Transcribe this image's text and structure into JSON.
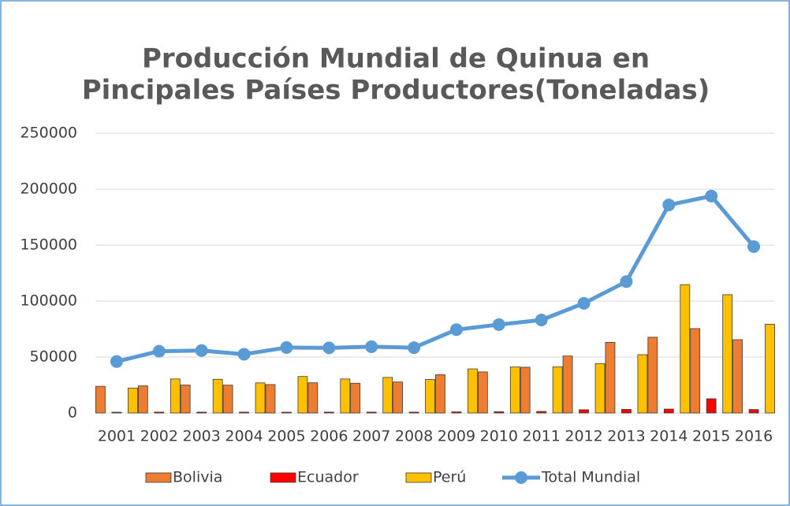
{
  "chart_data": {
    "type": "bar-line",
    "title": "Producción Mundial de Quinua en",
    "title_line2": "Pincipales Países Productores(Toneladas)",
    "categories": [
      "2001",
      "2002",
      "2003",
      "2004",
      "2005",
      "2006",
      "2007",
      "2008",
      "2009",
      "2010",
      "2011",
      "2012",
      "2013",
      "2014",
      "2015",
      "2016"
    ],
    "series": [
      {
        "name": "Bolivia",
        "color": "#ed7d31",
        "kind": "bar",
        "values": [
          23800,
          24200,
          25000,
          24900,
          25400,
          27000,
          26600,
          27700,
          34200,
          36700,
          40900,
          50900,
          63100,
          67700,
          75400,
          65500
        ]
      },
      {
        "name": "Ecuador",
        "color": "#ff0000",
        "kind": "bar",
        "values": [
          700,
          800,
          800,
          800,
          700,
          800,
          800,
          800,
          1000,
          1100,
          1400,
          2900,
          3200,
          3500,
          12700,
          3100
        ]
      },
      {
        "name": "Perú",
        "color": "#ffc000",
        "kind": "bar",
        "values": [
          22300,
          30400,
          30100,
          26900,
          32600,
          30400,
          31800,
          29900,
          39400,
          41100,
          41200,
          44200,
          52100,
          114700,
          105700,
          79300
        ]
      },
      {
        "name": "Total Mundial",
        "color": "#5b9bd5",
        "kind": "line",
        "values": [
          46000,
          55200,
          55800,
          52500,
          58500,
          58200,
          59200,
          58400,
          74500,
          79000,
          83100,
          98000,
          117400,
          185900,
          193800,
          148700
        ]
      }
    ],
    "ylim": [
      0,
      250000
    ],
    "yticks": [
      0,
      50000,
      100000,
      150000,
      200000,
      250000
    ],
    "grid": true,
    "legend": "bottom"
  }
}
